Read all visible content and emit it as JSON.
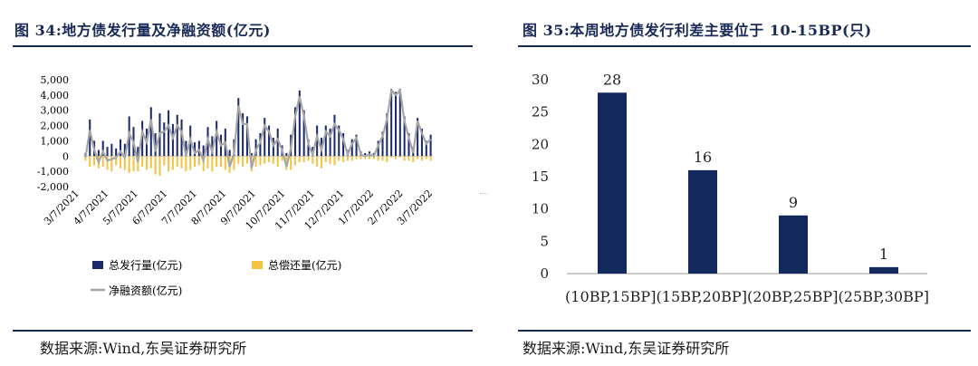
{
  "left": {
    "title": "图 34:地方债发行量及净融资额(亿元)",
    "source": "数据来源:Wind,东吴证券研究所",
    "chart_data": {
      "type": "bar+line",
      "y_ticks": [
        "5,000",
        "4,000",
        "3,000",
        "2,000",
        "1,000",
        "0",
        "-1,000",
        "-2,000"
      ],
      "ylim": [
        -2000,
        5000
      ],
      "x_ticks": [
        "3/7/2021",
        "4/7/2021",
        "5/7/2021",
        "6/7/2021",
        "7/7/2021",
        "8/7/2021",
        "9/7/2021",
        "10/7/2021",
        "11/7/2021",
        "12/7/2021",
        "1/7/2022",
        "2/7/2022",
        "3/7/2022"
      ],
      "series": [
        {
          "name": "总发行量(亿元)",
          "kind": "bar",
          "color": "#1a2a6c",
          "values": [
            200,
            2400,
            1000,
            400,
            1000,
            600,
            800,
            500,
            1100,
            800,
            2600,
            1900,
            600,
            2300,
            1800,
            3200,
            1500,
            2800,
            2200,
            3000,
            2100,
            2700,
            2400,
            1000,
            2000,
            900,
            1000,
            700,
            1900,
            1300,
            2300,
            1400,
            1800,
            400,
            1100,
            3800,
            2800,
            2600,
            200,
            1100,
            1500,
            2500,
            2000,
            1200,
            1800,
            700,
            200,
            1400,
            3200,
            4300,
            3000,
            1100,
            600,
            2000,
            1200,
            2000,
            1800,
            2700,
            2000,
            1500,
            400,
            1100,
            1400,
            300,
            200,
            300,
            200,
            1000,
            1600,
            2800,
            4400,
            4200,
            4400,
            2600,
            1500,
            600,
            2500,
            1800,
            1000,
            1400
          ]
        },
        {
          "name": "总偿还量(亿元)",
          "kind": "bar",
          "color": "#f5c242",
          "values": [
            -300,
            -700,
            -600,
            -800,
            -700,
            -900,
            -1000,
            -600,
            -800,
            -900,
            -1100,
            -1000,
            -1000,
            -700,
            -900,
            -800,
            -1200,
            -1300,
            -600,
            -1000,
            -900,
            -700,
            -800,
            -1000,
            -900,
            -700,
            -600,
            -1000,
            -800,
            -1000,
            -700,
            -700,
            -900,
            -1100,
            -900,
            -500,
            -700,
            -500,
            -1000,
            -700,
            -600,
            -500,
            -400,
            -500,
            -700,
            -300,
            -900,
            -900,
            -600,
            -400,
            -400,
            -300,
            -500,
            -700,
            -800,
            -400,
            -500,
            -600,
            -300,
            -400,
            -300,
            -300,
            -200,
            -200,
            -200,
            -200,
            -200,
            -300,
            -300,
            -400,
            -100,
            -200,
            -100,
            -300,
            -300,
            -400,
            -200,
            -300,
            -200,
            -300
          ]
        },
        {
          "name": "净融资额(亿元)",
          "kind": "line",
          "color": "#a6a6a6",
          "values": [
            -100,
            1700,
            400,
            -400,
            300,
            -300,
            -200,
            -100,
            300,
            -100,
            1500,
            900,
            -400,
            1600,
            900,
            2400,
            300,
            1500,
            1600,
            2000,
            1200,
            2000,
            1600,
            0,
            1100,
            200,
            400,
            -300,
            1100,
            300,
            1600,
            700,
            900,
            -700,
            200,
            3300,
            2100,
            2100,
            -800,
            400,
            900,
            2000,
            1600,
            700,
            1100,
            400,
            -700,
            500,
            2600,
            3900,
            2600,
            800,
            100,
            1300,
            400,
            1600,
            1300,
            2100,
            1700,
            1100,
            100,
            800,
            1200,
            100,
            0,
            100,
            0,
            700,
            1300,
            2400,
            4300,
            4000,
            4300,
            2300,
            1200,
            200,
            2300,
            1500,
            800,
            1100
          ]
        }
      ]
    }
  },
  "right": {
    "title": "图 35:本周地方债发行利差主要位于 10-15BP(只)",
    "source": "数据来源:Wind,东吴证券研究所",
    "chart_data": {
      "type": "bar",
      "categories": [
        "(10BP,15BP]",
        "(15BP,20BP]",
        "(20BP,25BP]",
        "(25BP,30BP]"
      ],
      "values": [
        28,
        16,
        9,
        1
      ],
      "value_labels": [
        "28",
        "16",
        "9",
        "1"
      ],
      "y_ticks": [
        "30",
        "25",
        "20",
        "15",
        "10",
        "5",
        "0"
      ],
      "ylim": [
        0,
        30
      ],
      "bar_color": "#13285c"
    }
  }
}
